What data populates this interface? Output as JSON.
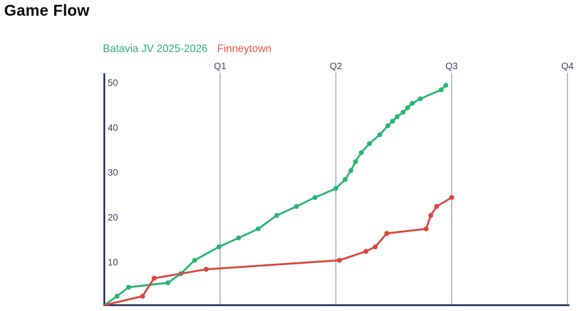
{
  "page": {
    "title": "Game Flow"
  },
  "legend": {
    "items": [
      {
        "label": "Batavia JV 2025-2026",
        "color": "#2fae78"
      },
      {
        "label": "Finneytown",
        "color": "#e4574b"
      }
    ]
  },
  "chart_data": {
    "type": "line",
    "title": "Game Flow",
    "xlabel": "",
    "ylabel": "",
    "ylim": [
      0,
      50
    ],
    "yticks": [
      10,
      20,
      30,
      40,
      50
    ],
    "grid": "vertical-quarter-lines-only",
    "legend_position": "top-left",
    "x_markers": [
      {
        "label": "Q1",
        "t": 1
      },
      {
        "label": "Q2",
        "t": 2
      },
      {
        "label": "Q3",
        "t": 3
      },
      {
        "label": "Q4",
        "t": 4
      }
    ],
    "x_units": "quarters (0 = game start, 1 = end of Q1)",
    "axis_color": "#20295c",
    "grid_color": "#a9aec4",
    "tick_color": "#3c4168",
    "series": [
      {
        "name": "Batavia JV 2025-2026",
        "color": "#2bb673",
        "points": [
          [
            0,
            0
          ],
          [
            0.11,
            2
          ],
          [
            0.21,
            4
          ],
          [
            0.55,
            5
          ],
          [
            0.66,
            7
          ],
          [
            0.78,
            10
          ],
          [
            0.99,
            13
          ],
          [
            1.16,
            15
          ],
          [
            1.33,
            17
          ],
          [
            1.49,
            20
          ],
          [
            1.66,
            22
          ],
          [
            1.82,
            24
          ],
          [
            2.0,
            26
          ],
          [
            2.08,
            28
          ],
          [
            2.13,
            30
          ],
          [
            2.17,
            32
          ],
          [
            2.22,
            34
          ],
          [
            2.29,
            36
          ],
          [
            2.38,
            38
          ],
          [
            2.45,
            40
          ],
          [
            2.49,
            41
          ],
          [
            2.53,
            42
          ],
          [
            2.58,
            43
          ],
          [
            2.62,
            44
          ],
          [
            2.66,
            45
          ],
          [
            2.73,
            46
          ],
          [
            2.91,
            48
          ],
          [
            2.95,
            49
          ]
        ]
      },
      {
        "name": "Finneytown",
        "color": "#d9473c",
        "points": [
          [
            0,
            0
          ],
          [
            0.33,
            2
          ],
          [
            0.43,
            6
          ],
          [
            0.88,
            8
          ],
          [
            2.03,
            10
          ],
          [
            2.26,
            12
          ],
          [
            2.34,
            13
          ],
          [
            2.44,
            16
          ],
          [
            2.78,
            17
          ],
          [
            2.82,
            20
          ],
          [
            2.87,
            22
          ],
          [
            3.0,
            24
          ]
        ]
      }
    ]
  }
}
